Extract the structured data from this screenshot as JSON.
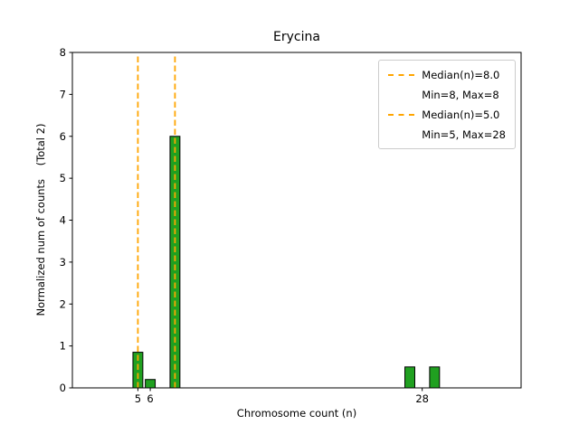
{
  "chart_data": {
    "type": "bar",
    "title": "Erycina",
    "xlabel": "Chromosome count (n)",
    "ylabel": "Normalized num of counts    (Total 2)",
    "xlim": [
      -0.3,
      36
    ],
    "ylim": [
      0,
      8
    ],
    "xticks": [
      5,
      6,
      28
    ],
    "yticks": [
      0,
      1,
      2,
      3,
      4,
      5,
      6,
      7,
      8
    ],
    "grid": false,
    "bar_width": 0.8,
    "bar_fill": "#20A020",
    "bar_edge": "#000000",
    "bars": [
      {
        "x": 5,
        "height": 0.85
      },
      {
        "x": 6,
        "height": 0.2
      },
      {
        "x": 8,
        "height": 6.0
      },
      {
        "x": 27,
        "height": 0.5
      },
      {
        "x": 29,
        "height": 0.5
      }
    ],
    "median_lines": [
      {
        "x": 8.0,
        "color": "#FFA500",
        "style": "dashed",
        "label": "Median(n)=8.0",
        "sublabel": "Min=8, Max=8"
      },
      {
        "x": 5.0,
        "color": "#FFA500",
        "style": "dashed",
        "label": "Median(n)=5.0",
        "sublabel": "Min=5, Max=28"
      }
    ],
    "legend": {
      "position": "upper right",
      "entries": [
        {
          "swatch": "dashed-line",
          "color": "#FFA500",
          "label": "Median(n)=8.0"
        },
        {
          "swatch": "none",
          "color": "",
          "label": "Min=8, Max=8"
        },
        {
          "swatch": "dashed-line",
          "color": "#FFA500",
          "label": "Median(n)=5.0"
        },
        {
          "swatch": "none",
          "color": "",
          "label": "Min=5, Max=28"
        }
      ]
    }
  }
}
